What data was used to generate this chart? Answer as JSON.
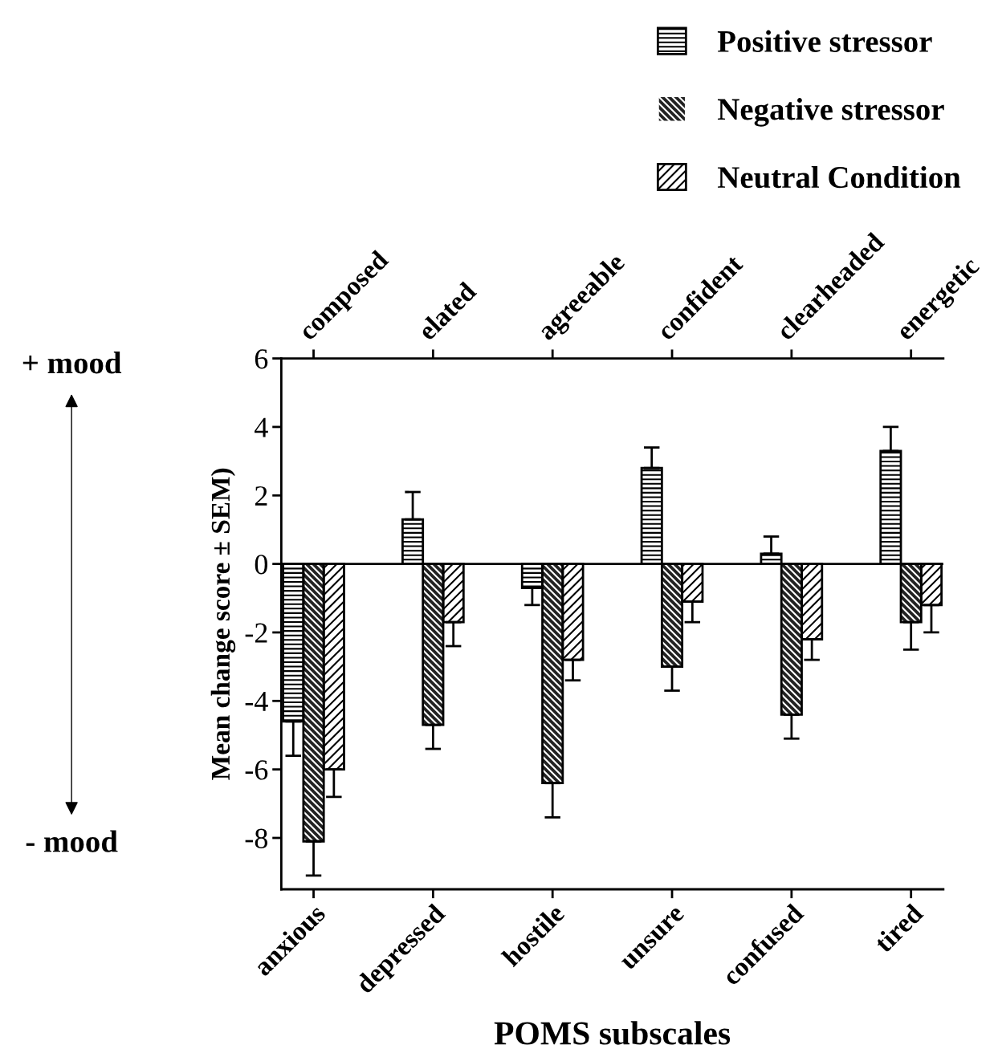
{
  "chart_data": {
    "type": "bar",
    "categories": [
      "anxious",
      "depressed",
      "hostile",
      "unsure",
      "confused",
      "tired"
    ],
    "xlabel": "POMS subscales",
    "ylabel": "Mean change score ± SEM)",
    "series": [
      {
        "name": "Positive stressor",
        "color": "#ffffff",
        "values": [
          -4.6,
          1.3,
          -0.7,
          2.8,
          0.3,
          3.3
        ],
        "errors": [
          [
            -5.6,
            -4.6
          ],
          [
            1.3,
            2.1
          ],
          [
            -1.2,
            -0.7
          ],
          [
            2.8,
            3.4
          ],
          [
            0.3,
            0.8
          ],
          [
            3.3,
            4.0
          ]
        ]
      },
      {
        "name": "Negative stressor",
        "color": "#222222",
        "values": [
          -8.1,
          -4.7,
          -6.4,
          -3.0,
          -4.4,
          -1.7
        ],
        "errors": [
          [
            -9.1,
            -8.1
          ],
          [
            -5.4,
            -4.7
          ],
          [
            -7.4,
            -6.4
          ],
          [
            -3.7,
            -3.0
          ],
          [
            -5.1,
            -4.4
          ],
          [
            -2.5,
            -1.7
          ]
        ]
      },
      {
        "name": "Neutral Condition",
        "color": "#ffffff",
        "values": [
          -6.0,
          -1.7,
          -2.8,
          -1.1,
          -2.2,
          -1.2
        ],
        "errors": [
          [
            -6.8,
            -6.0
          ],
          [
            -2.4,
            -1.7
          ],
          [
            -3.4,
            -2.8
          ],
          [
            -1.7,
            -1.1
          ],
          [
            -2.8,
            -2.2
          ],
          [
            -2.0,
            -1.2
          ]
        ]
      }
    ],
    "ylim": [
      -9.5,
      6
    ],
    "yticks": [
      -8,
      -6,
      -4,
      -2,
      0,
      2,
      4,
      6
    ],
    "annotations": [
      "+ mood",
      "- mood",
      "composed",
      "elated",
      "agreeable",
      "confident",
      "clearheaded",
      "energetic"
    ],
    "ref_lines": [
      {
        "axis": "y",
        "value": 0,
        "color": "#000000",
        "line_style": "solid"
      }
    ],
    "legend": "top right",
    "grid": false
  }
}
